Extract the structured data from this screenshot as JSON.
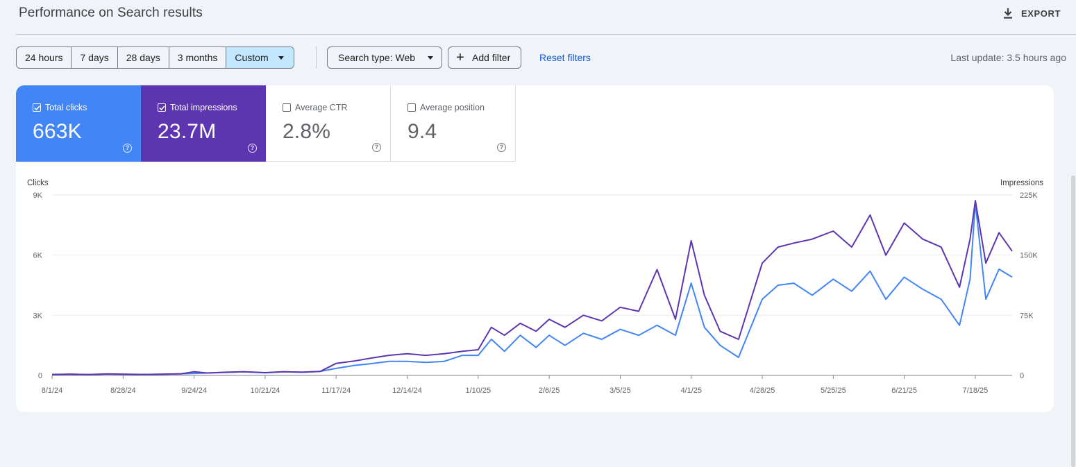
{
  "header": {
    "title": "Performance on Search results",
    "export_label": "EXPORT"
  },
  "toolbar": {
    "ranges": [
      "24 hours",
      "7 days",
      "28 days",
      "3 months"
    ],
    "custom_label": "Custom",
    "search_type": "Search type: Web",
    "add_filter": "Add filter",
    "reset_filters": "Reset filters",
    "last_update": "Last update: 3.5 hours ago"
  },
  "metrics": {
    "clicks": {
      "label": "Total clicks",
      "value": "663K",
      "checked": true
    },
    "impressions": {
      "label": "Total impressions",
      "value": "23.7M",
      "checked": true
    },
    "ctr": {
      "label": "Average CTR",
      "value": "2.8%",
      "checked": false
    },
    "position": {
      "label": "Average position",
      "value": "9.4",
      "checked": false
    }
  },
  "colors": {
    "clicks": "#4285f4",
    "impressions": "#5e35b1",
    "accent": "#0b57d0",
    "selected": "#c2e7ff"
  },
  "icons": {
    "export": "download-icon",
    "search_type": "caret-down-icon",
    "add_filter": "plus-icon",
    "metric_help": "help-circle-icon",
    "checkbox": "checkbox-icon"
  },
  "chart_data": {
    "type": "line",
    "ylabel_left": "Clicks",
    "ylabel_right": "Impressions",
    "yticks_left": [
      "0",
      "3K",
      "6K",
      "9K"
    ],
    "yticks_right": [
      "0",
      "75K",
      "150K",
      "225K"
    ],
    "ylim_left": [
      0,
      9000
    ],
    "ylim_right": [
      0,
      225000
    ],
    "xticks": [
      "8/1/24",
      "8/28/24",
      "9/24/24",
      "10/21/24",
      "11/17/24",
      "12/14/24",
      "1/10/25",
      "2/6/25",
      "3/5/25",
      "4/1/25",
      "4/28/25",
      "5/25/25",
      "6/21/25",
      "7/18/25"
    ],
    "grid": true,
    "series": [
      {
        "name": "Clicks",
        "color": "#4285f4",
        "axis": "left",
        "x": [
          "8/1/24",
          "8/8/24",
          "8/15/24",
          "8/22/24",
          "8/28/24",
          "9/5/24",
          "9/12/24",
          "9/19/24",
          "9/24/24",
          "9/29/24",
          "10/6/24",
          "10/13/24",
          "10/21/24",
          "10/28/24",
          "11/4/24",
          "11/11/24",
          "11/17/24",
          "11/24/24",
          "12/1/24",
          "12/7/24",
          "12/14/24",
          "12/21/24",
          "12/28/24",
          "1/4/25",
          "1/10/25",
          "1/15/25",
          "1/20/25",
          "1/26/25",
          "2/1/25",
          "2/6/25",
          "2/12/25",
          "2/19/25",
          "2/26/25",
          "3/5/25",
          "3/12/25",
          "3/19/25",
          "3/26/25",
          "4/1/25",
          "4/6/25",
          "4/12/25",
          "4/19/25",
          "4/28/25",
          "5/4/25",
          "5/10/25",
          "5/17/25",
          "5/25/25",
          "6/1/25",
          "6/8/25",
          "6/14/25",
          "6/21/25",
          "6/28/25",
          "7/5/25",
          "7/12/25",
          "7/16/25",
          "7/18/25",
          "7/22/25",
          "7/27/25",
          "8/1/25"
        ],
        "values": [
          50,
          60,
          40,
          70,
          60,
          50,
          60,
          80,
          100,
          120,
          150,
          180,
          130,
          180,
          160,
          200,
          350,
          500,
          600,
          700,
          700,
          650,
          700,
          1000,
          1000,
          1800,
          1200,
          2000,
          1400,
          2000,
          1500,
          2100,
          1800,
          2300,
          2000,
          2500,
          2000,
          4600,
          2400,
          1500,
          900,
          3800,
          4500,
          4600,
          4000,
          4800,
          4200,
          5200,
          3800,
          4900,
          4300,
          3800,
          2500,
          4800,
          8600,
          3800,
          5300,
          4900
        ]
      },
      {
        "name": "Impressions",
        "color": "#5e35b1",
        "axis": "right",
        "x": [
          "8/1/24",
          "8/8/24",
          "8/15/24",
          "8/22/24",
          "8/28/24",
          "9/5/24",
          "9/12/24",
          "9/19/24",
          "9/24/24",
          "9/29/24",
          "10/6/24",
          "10/13/24",
          "10/21/24",
          "10/28/24",
          "11/4/24",
          "11/11/24",
          "11/17/24",
          "11/24/24",
          "12/1/24",
          "12/7/24",
          "12/14/24",
          "12/21/24",
          "12/28/24",
          "1/4/25",
          "1/10/25",
          "1/15/25",
          "1/20/25",
          "1/26/25",
          "2/1/25",
          "2/6/25",
          "2/12/25",
          "2/19/25",
          "2/26/25",
          "3/5/25",
          "3/12/25",
          "3/19/25",
          "3/26/25",
          "4/1/25",
          "4/6/25",
          "4/12/25",
          "4/19/25",
          "4/28/25",
          "5/4/25",
          "5/10/25",
          "5/17/25",
          "5/25/25",
          "6/1/25",
          "6/8/25",
          "6/14/25",
          "6/21/25",
          "6/28/25",
          "7/5/25",
          "7/12/25",
          "7/16/25",
          "7/18/25",
          "7/22/25",
          "7/27/25",
          "8/1/25"
        ],
        "values": [
          1200,
          1500,
          1000,
          1800,
          1500,
          1200,
          1500,
          2000,
          4500,
          3000,
          4000,
          4500,
          3500,
          4500,
          4000,
          5000,
          15000,
          18000,
          22000,
          25000,
          27000,
          25000,
          27000,
          30000,
          32000,
          60000,
          50000,
          65000,
          55000,
          70000,
          60000,
          75000,
          68000,
          85000,
          80000,
          132000,
          70000,
          168000,
          100000,
          55000,
          45000,
          140000,
          160000,
          165000,
          170000,
          180000,
          160000,
          200000,
          150000,
          190000,
          170000,
          160000,
          110000,
          170000,
          218000,
          140000,
          178000,
          155000
        ]
      }
    ]
  }
}
